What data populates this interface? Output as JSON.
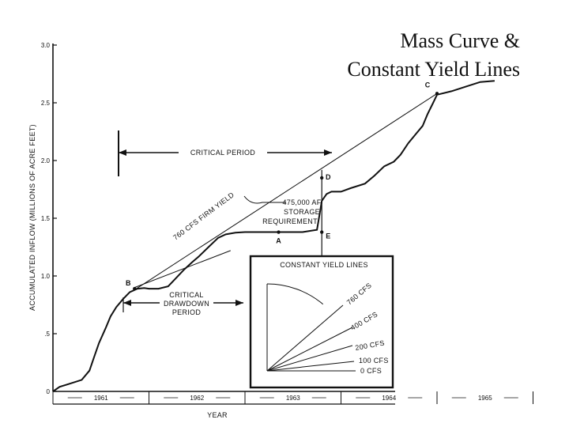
{
  "title": {
    "line1": "Mass Curve &",
    "line2": "Constant Yield Lines"
  },
  "chart_data": {
    "type": "line",
    "title": "Mass Curve & Constant Yield Lines",
    "xlabel": "YEAR",
    "ylabel": "ACCUMULATED INFLOW (MILLIONS OF ACRE FEET)",
    "xlim": [
      1961,
      1966
    ],
    "ylim": [
      0,
      3.0
    ],
    "yticks": [
      "0",
      ".5",
      "1.0",
      "1.5",
      "2.0",
      "2.5",
      "3.0"
    ],
    "year_labels": [
      "1961",
      "1962",
      "1963",
      "1964",
      "1965"
    ],
    "series": [
      {
        "name": "Mass curve (accumulated inflow)",
        "x": [
          1961.0,
          1961.07,
          1961.15,
          1961.3,
          1961.38,
          1961.43,
          1961.48,
          1961.55,
          1961.6,
          1961.66,
          1961.73,
          1961.8,
          1961.88,
          1961.95,
          1962.0,
          1962.1,
          1962.2,
          1962.28,
          1962.36,
          1962.45,
          1962.52,
          1962.62,
          1962.72,
          1962.8,
          1962.9,
          1963.0,
          1963.2,
          1963.4,
          1963.6,
          1963.75,
          1963.78,
          1963.8,
          1963.85,
          1963.9,
          1964.0,
          1964.1,
          1964.25,
          1964.35,
          1964.45,
          1964.55,
          1964.62,
          1964.7,
          1964.78,
          1964.85,
          1964.9,
          1964.96,
          1965.0,
          1965.15,
          1965.3,
          1965.45,
          1965.6
        ],
        "y": [
          0.0,
          0.04,
          0.06,
          0.1,
          0.18,
          0.3,
          0.42,
          0.55,
          0.65,
          0.73,
          0.8,
          0.86,
          0.89,
          0.895,
          0.89,
          0.89,
          0.91,
          0.98,
          1.05,
          1.12,
          1.17,
          1.25,
          1.33,
          1.36,
          1.375,
          1.38,
          1.38,
          1.38,
          1.38,
          1.4,
          1.55,
          1.65,
          1.71,
          1.73,
          1.73,
          1.76,
          1.8,
          1.87,
          1.95,
          1.99,
          2.05,
          2.15,
          2.23,
          2.3,
          2.4,
          2.5,
          2.57,
          2.6,
          2.64,
          2.68,
          2.69
        ]
      },
      {
        "name": "760 CFS FIRM YIELD",
        "x": [
          1961.85,
          1965.0
        ],
        "y": [
          0.88,
          2.58
        ]
      },
      {
        "name": "tangent at B",
        "x": [
          1961.85,
          1962.85
        ],
        "y": [
          0.9,
          1.22
        ]
      }
    ],
    "points": [
      {
        "label": "A",
        "x": 1963.35,
        "y": 1.38
      },
      {
        "label": "B",
        "x": 1961.85,
        "y": 0.89
      },
      {
        "label": "C",
        "x": 1965.0,
        "y": 2.58
      },
      {
        "label": "D",
        "x": 1963.8,
        "y": 1.85
      },
      {
        "label": "E",
        "x": 1963.8,
        "y": 1.38
      }
    ],
    "annotations": {
      "firm_yield": "760 CFS FIRM YIELD",
      "critical_period": "CRITICAL PERIOD",
      "storage_line1": "475,000 AF",
      "storage_line2": "STORAGE",
      "storage_line3": "REQUIREMENT",
      "drawdown_line1": "CRITICAL",
      "drawdown_line2": "DRAWDOWN",
      "drawdown_line3": "PERIOD"
    },
    "inset": {
      "title": "CONSTANT YIELD LINES",
      "lines": [
        {
          "label": "760 CFS",
          "cfs": 760
        },
        {
          "label": "400 CFS",
          "cfs": 400
        },
        {
          "label": "200 CFS",
          "cfs": 200
        },
        {
          "label": "100 CFS",
          "cfs": 100
        },
        {
          "label": "0 CFS",
          "cfs": 0
        }
      ]
    }
  }
}
